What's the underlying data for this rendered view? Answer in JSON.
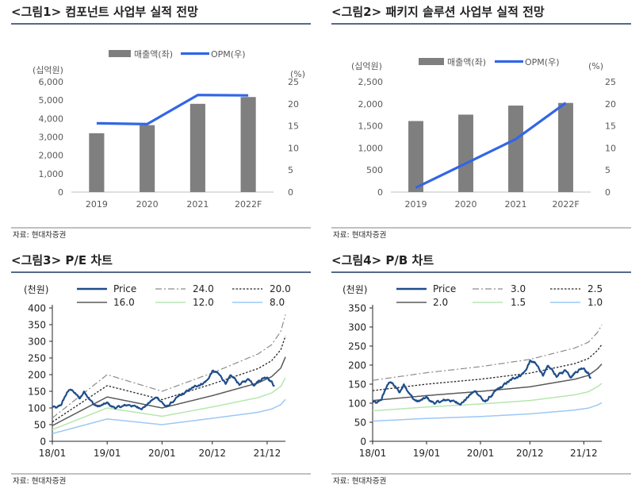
{
  "figures": {
    "fig1": {
      "title": "<그림1> 컴포넌트 사업부 실적 전망",
      "source": "자료: 현대차증권"
    },
    "fig2": {
      "title": "<그림2> 패키지 솔루션 사업부 실적 전망",
      "source": "자료: 현대차증권"
    },
    "fig3": {
      "title": "<그림3> P/E 차트",
      "source": "자료: 현대차증권"
    },
    "fig4": {
      "title": "<그림4> P/B 차트",
      "source": "자료: 현대차증권"
    }
  },
  "colors": {
    "bar": "#7f7f7f",
    "opm": "#3366e6",
    "price": "#1f4e8c",
    "band_top": "#8c8c8c",
    "band_second": "#262626",
    "band_third": "#595959",
    "band_fourth": "#b7e6b0",
    "band_fifth": "#9cc8f5"
  },
  "chart_data": [
    {
      "id": "fig1",
      "type": "bar+line",
      "categories": [
        "2019",
        "2020",
        "2021",
        "2022F"
      ],
      "series": [
        {
          "name": "매출액(좌)",
          "axis": "left",
          "values": [
            3200,
            3640,
            4800,
            5170
          ]
        },
        {
          "name": "OPM(우)",
          "axis": "right",
          "values": [
            15.6,
            15.4,
            22.0,
            21.9
          ]
        }
      ],
      "left_unit": "(십억원)",
      "right_unit": "(%)",
      "left_lim": [
        0,
        6000
      ],
      "right_lim": [
        0,
        25
      ],
      "left_ticks": [
        0,
        1000,
        2000,
        3000,
        4000,
        5000,
        6000
      ],
      "left_tick_labels": [
        "0",
        "1,000",
        "2,000",
        "3,000",
        "4,000",
        "5,000",
        "6,000"
      ],
      "right_ticks": [
        0,
        5,
        10,
        15,
        20,
        25
      ],
      "right_tick_labels": [
        "0",
        "5",
        "10",
        "15",
        "20",
        "25"
      ]
    },
    {
      "id": "fig2",
      "type": "bar+line",
      "categories": [
        "2019",
        "2020",
        "2021",
        "2022F"
      ],
      "series": [
        {
          "name": "매출액(좌)",
          "axis": "left",
          "values": [
            1610,
            1755,
            1960,
            2020
          ]
        },
        {
          "name": "OPM(우)",
          "axis": "right",
          "values": [
            1.0,
            6.5,
            12.0,
            20.2
          ]
        }
      ],
      "left_unit": "(십억원)",
      "right_unit": "(%)",
      "left_lim": [
        0,
        2500
      ],
      "right_lim": [
        0,
        25
      ],
      "left_ticks": [
        0,
        500,
        1000,
        1500,
        2000,
        2500
      ],
      "left_tick_labels": [
        "0",
        "500",
        "1,000",
        "1,500",
        "2,000",
        "2,500"
      ],
      "right_ticks": [
        0,
        5,
        10,
        15,
        20,
        25
      ],
      "right_tick_labels": [
        "0",
        "5",
        "10",
        "15",
        "20",
        "25"
      ]
    },
    {
      "id": "fig3",
      "type": "line",
      "unit": "(천원)",
      "ylim": [
        0,
        400
      ],
      "y_ticks": [
        0,
        50,
        100,
        150,
        200,
        250,
        300,
        350,
        400
      ],
      "x_tick_labels": [
        "18/01",
        "19/01",
        "20/01",
        "20/12",
        "21/12"
      ],
      "x_tick_months": [
        0,
        12,
        24,
        35,
        47
      ],
      "x_range_months": [
        0,
        51
      ],
      "price_name": "Price",
      "price_anchors": [
        [
          0,
          105
        ],
        [
          1,
          97
        ],
        [
          2,
          110
        ],
        [
          3,
          140
        ],
        [
          4,
          158
        ],
        [
          5,
          142
        ],
        [
          6,
          128
        ],
        [
          7,
          150
        ],
        [
          8,
          133
        ],
        [
          9,
          112
        ],
        [
          10,
          104
        ],
        [
          11,
          108
        ],
        [
          12,
          113
        ],
        [
          13,
          104
        ],
        [
          14,
          100
        ],
        [
          15,
          103
        ],
        [
          16,
          106
        ],
        [
          17,
          110
        ],
        [
          18,
          104
        ],
        [
          19,
          101
        ],
        [
          20,
          104
        ],
        [
          21,
          114
        ],
        [
          22,
          125
        ],
        [
          23,
          131
        ],
        [
          24,
          118
        ],
        [
          25,
          101
        ],
        [
          26,
          115
        ],
        [
          27,
          125
        ],
        [
          28,
          135
        ],
        [
          29,
          143
        ],
        [
          30,
          154
        ],
        [
          31,
          160
        ],
        [
          32,
          170
        ],
        [
          33,
          176
        ],
        [
          34,
          185
        ],
        [
          35,
          210
        ],
        [
          36,
          205
        ],
        [
          37,
          190
        ],
        [
          38,
          176
        ],
        [
          39,
          192
        ],
        [
          40,
          185
        ],
        [
          41,
          170
        ],
        [
          42,
          178
        ],
        [
          43,
          188
        ],
        [
          44,
          173
        ],
        [
          45,
          182
        ],
        [
          46,
          190
        ],
        [
          47,
          196
        ],
        [
          48,
          180
        ],
        [
          48.6,
          165
        ]
      ],
      "price_end_month": 48.6,
      "bands": [
        {
          "name": "24.0",
          "style": "dashdot",
          "anchors": [
            [
              0,
              70
            ],
            [
              12,
              200
            ],
            [
              24,
              150
            ],
            [
              35,
              205
            ],
            [
              45,
              262
            ],
            [
              48,
              290
            ],
            [
              50,
              330
            ],
            [
              51,
              380
            ]
          ]
        },
        {
          "name": "20.0",
          "style": "dotted",
          "anchors": [
            [
              0,
              58
            ],
            [
              12,
              167
            ],
            [
              24,
              125
            ],
            [
              35,
              172
            ],
            [
              45,
              218
            ],
            [
              48,
              242
            ],
            [
              50,
              275
            ],
            [
              51,
              316
            ]
          ]
        },
        {
          "name": "16.0",
          "style": "solid",
          "anchors": [
            [
              0,
              47
            ],
            [
              12,
              133
            ],
            [
              24,
              100
            ],
            [
              35,
              137
            ],
            [
              45,
              175
            ],
            [
              48,
              194
            ],
            [
              50,
              220
            ],
            [
              51,
              253
            ]
          ]
        },
        {
          "name": "12.0",
          "style": "solid-light",
          "anchors": [
            [
              0,
              35
            ],
            [
              12,
              100
            ],
            [
              24,
              75
            ],
            [
              35,
              103
            ],
            [
              45,
              131
            ],
            [
              48,
              145
            ],
            [
              50,
              165
            ],
            [
              51,
              190
            ]
          ]
        },
        {
          "name": "8.0",
          "style": "solid-blue",
          "anchors": [
            [
              0,
              23
            ],
            [
              12,
              67
            ],
            [
              24,
              50
            ],
            [
              35,
              69
            ],
            [
              45,
              87
            ],
            [
              48,
              97
            ],
            [
              50,
              110
            ],
            [
              51,
              126
            ]
          ]
        }
      ]
    },
    {
      "id": "fig4",
      "type": "line",
      "unit": "(천원)",
      "ylim": [
        0,
        350
      ],
      "y_ticks": [
        0,
        50,
        100,
        150,
        200,
        250,
        300,
        350
      ],
      "x_tick_labels": [
        "18/01",
        "19/01",
        "20/01",
        "20/12",
        "21/12"
      ],
      "x_tick_months": [
        0,
        12,
        24,
        35,
        47
      ],
      "x_range_months": [
        0,
        51
      ],
      "price_name": "Price",
      "price_anchors": [
        [
          0,
          105
        ],
        [
          1,
          97
        ],
        [
          2,
          110
        ],
        [
          3,
          140
        ],
        [
          4,
          158
        ],
        [
          5,
          142
        ],
        [
          6,
          128
        ],
        [
          7,
          150
        ],
        [
          8,
          133
        ],
        [
          9,
          112
        ],
        [
          10,
          104
        ],
        [
          11,
          108
        ],
        [
          12,
          113
        ],
        [
          13,
          104
        ],
        [
          14,
          100
        ],
        [
          15,
          103
        ],
        [
          16,
          106
        ],
        [
          17,
          110
        ],
        [
          18,
          104
        ],
        [
          19,
          101
        ],
        [
          20,
          104
        ],
        [
          21,
          114
        ],
        [
          22,
          125
        ],
        [
          23,
          131
        ],
        [
          24,
          118
        ],
        [
          25,
          101
        ],
        [
          26,
          115
        ],
        [
          27,
          125
        ],
        [
          28,
          135
        ],
        [
          29,
          143
        ],
        [
          30,
          154
        ],
        [
          31,
          160
        ],
        [
          32,
          170
        ],
        [
          33,
          176
        ],
        [
          34,
          185
        ],
        [
          35,
          210
        ],
        [
          36,
          205
        ],
        [
          37,
          190
        ],
        [
          38,
          176
        ],
        [
          39,
          192
        ],
        [
          40,
          185
        ],
        [
          41,
          170
        ],
        [
          42,
          178
        ],
        [
          43,
          188
        ],
        [
          44,
          173
        ],
        [
          45,
          182
        ],
        [
          46,
          190
        ],
        [
          47,
          196
        ],
        [
          48,
          180
        ],
        [
          48.6,
          165
        ]
      ],
      "price_end_month": 48.6,
      "bands": [
        {
          "name": "3.0",
          "style": "dashdot",
          "anchors": [
            [
              0,
              160
            ],
            [
              12,
              180
            ],
            [
              24,
              196
            ],
            [
              35,
              215
            ],
            [
              45,
              245
            ],
            [
              48,
              260
            ],
            [
              50,
              285
            ],
            [
              51,
              305
            ]
          ]
        },
        {
          "name": "2.5",
          "style": "dotted",
          "anchors": [
            [
              0,
              133
            ],
            [
              12,
              150
            ],
            [
              24,
              163
            ],
            [
              35,
              179
            ],
            [
              45,
              204
            ],
            [
              48,
              217
            ],
            [
              50,
              238
            ],
            [
              51,
              254
            ]
          ]
        },
        {
          "name": "2.0",
          "style": "solid",
          "anchors": [
            [
              0,
              107
            ],
            [
              12,
              120
            ],
            [
              24,
              131
            ],
            [
              35,
              143
            ],
            [
              45,
              163
            ],
            [
              48,
              173
            ],
            [
              50,
              190
            ],
            [
              51,
              203
            ]
          ]
        },
        {
          "name": "1.5",
          "style": "solid-light",
          "anchors": [
            [
              0,
              80
            ],
            [
              12,
              90
            ],
            [
              24,
              98
            ],
            [
              35,
              107
            ],
            [
              45,
              122
            ],
            [
              48,
              130
            ],
            [
              50,
              143
            ],
            [
              51,
              152
            ]
          ]
        },
        {
          "name": "1.0",
          "style": "solid-blue",
          "anchors": [
            [
              0,
              53
            ],
            [
              12,
              60
            ],
            [
              24,
              65
            ],
            [
              35,
              72
            ],
            [
              45,
              82
            ],
            [
              48,
              87
            ],
            [
              50,
              95
            ],
            [
              51,
              101
            ]
          ]
        }
      ]
    }
  ]
}
